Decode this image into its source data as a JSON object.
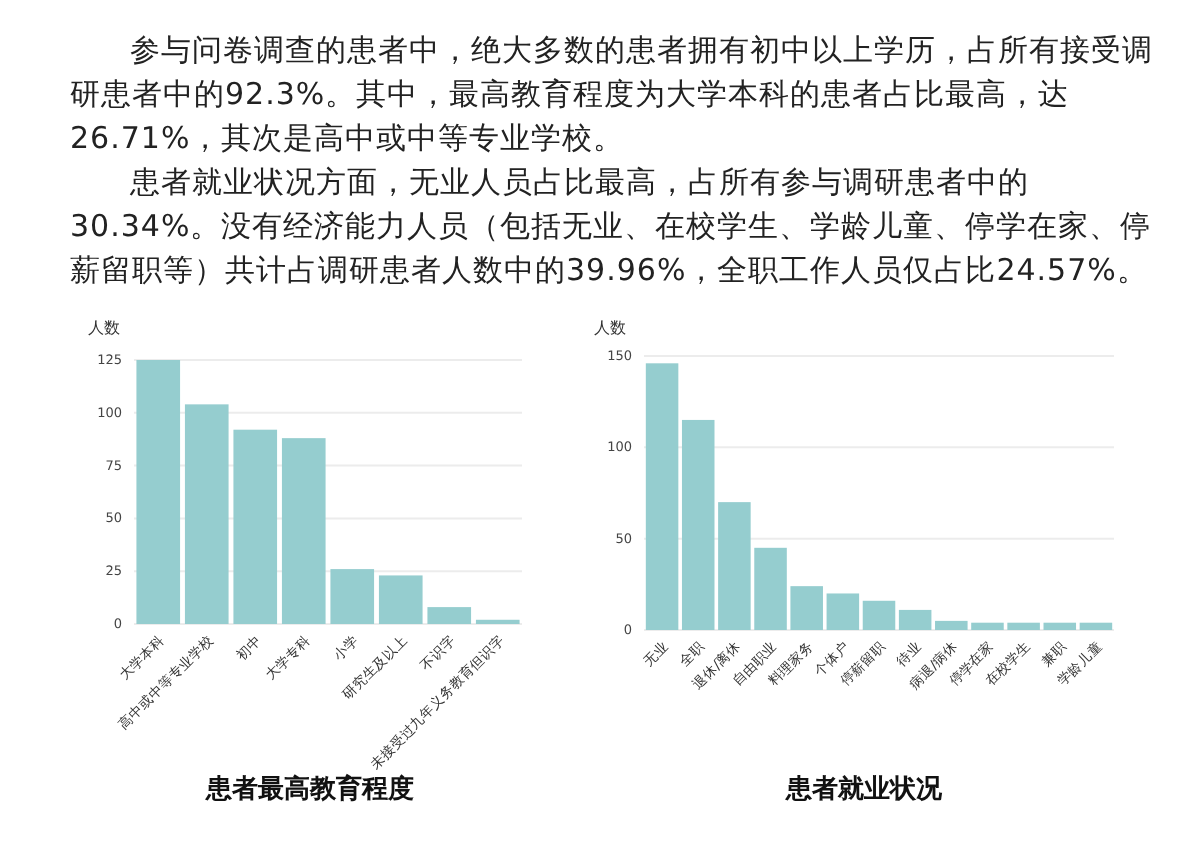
{
  "chart_data": [
    {
      "type": "bar",
      "title": "患者最高教育程度",
      "ylabel": "人数",
      "annotations": [
        "参与问卷调查的患者中，绝大多数的患者拥有初中以上学历，占所有接受调研患者中的92.3%。其中，最高教育程度为大学本科的患者占比最高，达26.71%，其次是高中或中等专业学校。"
      ],
      "categories": [
        "大学本科",
        "高中或中等专业学校",
        "初中",
        "大学专科",
        "小学",
        "研究生及以上",
        "不识字",
        "未接受过九年义务教育但识字"
      ],
      "values": [
        125,
        104,
        92,
        88,
        26,
        23,
        8,
        2
      ],
      "color": "#95cdcf",
      "ylim": [
        0,
        125
      ],
      "yticks": [
        0,
        25,
        50,
        75,
        100,
        125
      ],
      "grid": "y"
    },
    {
      "type": "bar",
      "title": "患者就业状况",
      "ylabel": "人数",
      "annotations": [
        "患者就业状况方面，无业人员占比最高，占所有参与调研患者中的30.34%。没有经济能力人员（包括无业、在校学生、学龄儿童、停学在家、停薪留职等）共计占调研患者人数中的39.96%，全职工作人员仅占比24.57%。"
      ],
      "categories": [
        "无业",
        "全职",
        "退休/离休",
        "自由职业",
        "料理家务",
        "个体户",
        "停薪留职",
        "待业",
        "病退/病休",
        "停学在家",
        "在校学生",
        "兼职",
        "学龄儿童"
      ],
      "values": [
        146,
        115,
        70,
        45,
        24,
        20,
        16,
        11,
        5,
        4,
        4,
        4,
        4
      ],
      "color": "#95cdcf",
      "ylim": [
        0,
        150
      ],
      "yticks": [
        0,
        50,
        100,
        150
      ],
      "grid": "y"
    }
  ]
}
